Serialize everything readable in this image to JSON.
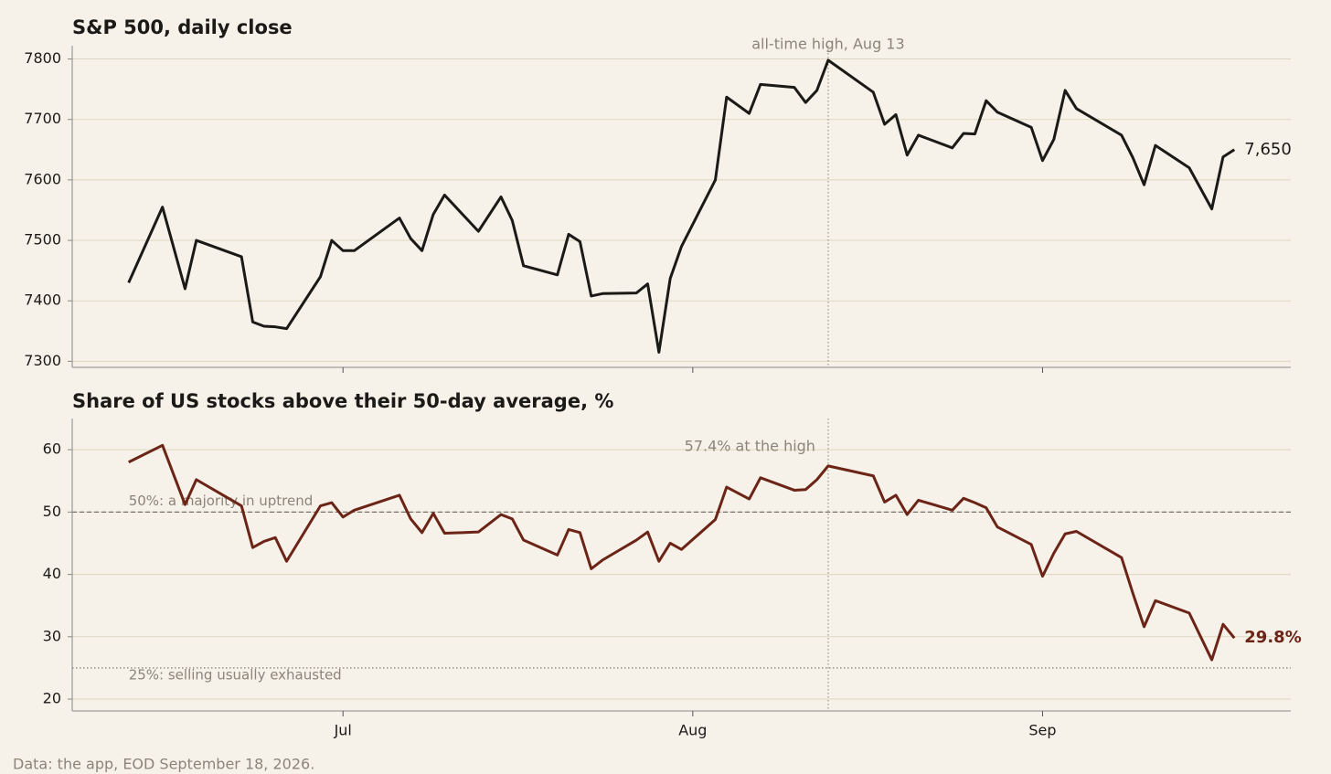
{
  "footer": "Data: the app, EOD September 18, 2026.",
  "chart_data": [
    {
      "type": "line",
      "title": "S&P 500, daily close",
      "x": [
        "2026-06-12",
        "2026-06-15",
        "2026-06-17",
        "2026-06-18",
        "2026-06-22",
        "2026-06-23",
        "2026-06-24",
        "2026-06-25",
        "2026-06-26",
        "2026-06-29",
        "2026-06-30",
        "2026-07-01",
        "2026-07-02",
        "2026-07-06",
        "2026-07-07",
        "2026-07-08",
        "2026-07-09",
        "2026-07-10",
        "2026-07-13",
        "2026-07-15",
        "2026-07-16",
        "2026-07-17",
        "2026-07-20",
        "2026-07-21",
        "2026-07-22",
        "2026-07-23",
        "2026-07-24",
        "2026-07-27",
        "2026-07-28",
        "2026-07-29",
        "2026-07-30",
        "2026-07-31",
        "2026-08-03",
        "2026-08-04",
        "2026-08-06",
        "2026-08-07",
        "2026-08-10",
        "2026-08-11",
        "2026-08-12",
        "2026-08-13",
        "2026-08-17",
        "2026-08-18",
        "2026-08-19",
        "2026-08-20",
        "2026-08-21",
        "2026-08-24",
        "2026-08-25",
        "2026-08-26",
        "2026-08-27",
        "2026-08-28",
        "2026-08-31",
        "2026-09-01",
        "2026-09-02",
        "2026-09-03",
        "2026-09-04",
        "2026-09-08",
        "2026-09-09",
        "2026-09-10",
        "2026-09-11",
        "2026-09-14",
        "2026-09-16",
        "2026-09-17",
        "2026-09-18"
      ],
      "series": [
        {
          "name": "S&P 500",
          "color": "#1c1a17",
          "values": [
            7430,
            7555,
            7420,
            7500,
            7473,
            7365,
            7358,
            7357,
            7354,
            7440,
            7500,
            7483,
            7483,
            7537,
            7503,
            7483,
            7543,
            7575,
            7515,
            7572,
            7533,
            7458,
            7443,
            7510,
            7498,
            7408,
            7412,
            7413,
            7428,
            7315,
            7437,
            7490,
            7600,
            7737,
            7710,
            7758,
            7753,
            7728,
            7748,
            7798,
            7745,
            7692,
            7708,
            7641,
            7674,
            7653,
            7677,
            7676,
            7731,
            7712,
            7687,
            7632,
            7667,
            7748,
            7718,
            7674,
            7637,
            7592,
            7657,
            7620,
            7552,
            7638,
            7650
          ],
          "value_labels": [
            null,
            null,
            null,
            null,
            null,
            null,
            null,
            null,
            null,
            null,
            null,
            null,
            null,
            null,
            null,
            null,
            null,
            null,
            null,
            null,
            null,
            null,
            null,
            null,
            null,
            null,
            null,
            null,
            null,
            null,
            null,
            null,
            null,
            null,
            null,
            null,
            null,
            null,
            null,
            null,
            null,
            null,
            null,
            null,
            null,
            null,
            null,
            null,
            null,
            null,
            null,
            null,
            null,
            null,
            null,
            null,
            null,
            null,
            null,
            null,
            null,
            null,
            "7,650"
          ],
          "value_label_bold": false
        }
      ],
      "xlim": [
        "2026-06-07",
        "2026-09-23"
      ],
      "xticks": [
        "2026-07-01",
        "2026-08-01",
        "2026-09-01"
      ],
      "show_xtick_labels": false,
      "ylim": [
        7290,
        7822
      ],
      "yticks": [
        7300,
        7400,
        7500,
        7600,
        7700,
        7800
      ],
      "grid": true,
      "annotations": [
        {
          "x": "2026-08-13",
          "text": "all-time high, Aug 13",
          "text_position": "center"
        }
      ],
      "reference_lines": []
    },
    {
      "type": "line",
      "title": "Share of US stocks above their 50-day average, %",
      "x": [
        "2026-06-12",
        "2026-06-15",
        "2026-06-17",
        "2026-06-18",
        "2026-06-22",
        "2026-06-23",
        "2026-06-24",
        "2026-06-25",
        "2026-06-26",
        "2026-06-29",
        "2026-06-30",
        "2026-07-01",
        "2026-07-02",
        "2026-07-06",
        "2026-07-07",
        "2026-07-08",
        "2026-07-09",
        "2026-07-10",
        "2026-07-13",
        "2026-07-15",
        "2026-07-16",
        "2026-07-17",
        "2026-07-20",
        "2026-07-21",
        "2026-07-22",
        "2026-07-23",
        "2026-07-24",
        "2026-07-27",
        "2026-07-28",
        "2026-07-29",
        "2026-07-30",
        "2026-07-31",
        "2026-08-03",
        "2026-08-04",
        "2026-08-06",
        "2026-08-07",
        "2026-08-10",
        "2026-08-11",
        "2026-08-12",
        "2026-08-13",
        "2026-08-17",
        "2026-08-18",
        "2026-08-19",
        "2026-08-20",
        "2026-08-21",
        "2026-08-24",
        "2026-08-25",
        "2026-08-26",
        "2026-08-27",
        "2026-08-28",
        "2026-08-31",
        "2026-09-01",
        "2026-09-02",
        "2026-09-03",
        "2026-09-04",
        "2026-09-08",
        "2026-09-09",
        "2026-09-10",
        "2026-09-11",
        "2026-09-14",
        "2026-09-16",
        "2026-09-17",
        "2026-09-18"
      ],
      "series": [
        {
          "name": "Share above 50-day average",
          "color": "#6b2416",
          "values": [
            58.0,
            60.7,
            51.2,
            55.2,
            51.0,
            44.3,
            45.3,
            45.9,
            42.1,
            51.0,
            51.5,
            49.2,
            50.3,
            52.7,
            48.9,
            46.7,
            49.8,
            46.6,
            46.8,
            49.6,
            48.9,
            45.5,
            43.1,
            47.2,
            46.7,
            40.9,
            42.3,
            45.5,
            46.8,
            42.1,
            45.0,
            44.0,
            48.8,
            54.0,
            52.1,
            55.5,
            53.5,
            53.6,
            55.2,
            57.4,
            55.8,
            51.6,
            52.7,
            49.6,
            51.9,
            50.3,
            52.2,
            51.5,
            50.7,
            47.6,
            44.8,
            39.7,
            43.4,
            46.5,
            46.9,
            42.7,
            37.0,
            31.6,
            35.8,
            33.8,
            26.3,
            32.0,
            29.8
          ],
          "value_labels": [
            null,
            null,
            null,
            null,
            null,
            null,
            null,
            null,
            null,
            null,
            null,
            null,
            null,
            null,
            null,
            null,
            null,
            null,
            null,
            null,
            null,
            null,
            null,
            null,
            null,
            null,
            null,
            null,
            null,
            null,
            null,
            null,
            null,
            null,
            null,
            null,
            null,
            null,
            null,
            null,
            null,
            null,
            null,
            null,
            null,
            null,
            null,
            null,
            null,
            null,
            null,
            null,
            null,
            null,
            null,
            null,
            null,
            null,
            null,
            null,
            null,
            null,
            "29.8%"
          ],
          "value_label_bold": true
        }
      ],
      "xlim": [
        "2026-06-07",
        "2026-09-23"
      ],
      "xticks": [
        {
          "value": "2026-07-01",
          "label": "Jul"
        },
        {
          "value": "2026-08-01",
          "label": "Aug"
        },
        {
          "value": "2026-09-01",
          "label": "Sep"
        }
      ],
      "show_xtick_labels": true,
      "ylim": [
        18.1,
        65
      ],
      "yticks": [
        20,
        30,
        40,
        50,
        60
      ],
      "grid": true,
      "annotations": [
        {
          "x": "2026-08-13",
          "text": "57.4% at the high",
          "text_position": "left"
        }
      ],
      "reference_lines": [
        {
          "y": 50,
          "text": "50%: a majority in uptrend",
          "style": "dashed",
          "label_position": "above"
        },
        {
          "y": 25,
          "text": "25%: selling usually exhausted",
          "style": "dotted",
          "label_position": "below"
        }
      ]
    }
  ]
}
